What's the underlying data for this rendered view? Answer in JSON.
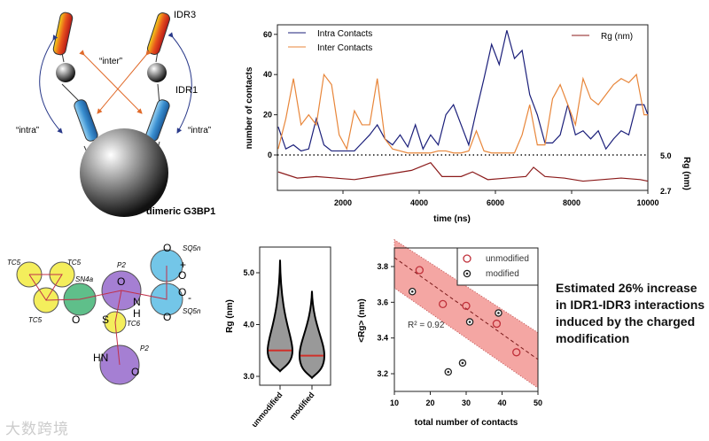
{
  "diagram": {
    "labels": {
      "idr3": "IDR3",
      "idr1": "IDR1",
      "inter": "“inter”",
      "intra_left": "“intra”",
      "intra_right": "“intra”",
      "protein": "dimeric G3BP1"
    }
  },
  "molecule": {
    "beads": [
      "TC5",
      "TC5",
      "TC5",
      "SN4a",
      "P2",
      "SQ5n",
      "SQ5n",
      "TC6",
      "P2"
    ],
    "atoms": {
      "o": "O",
      "n": "N",
      "h": "H",
      "s": "S",
      "hn": "HN",
      "plus": "+",
      "minus": "-"
    }
  },
  "note": "Estimated 26% increase in IDR1-IDR3 interactions induced by the charged modification",
  "watermark": "大数跨境",
  "colors": {
    "intra": "#1b1f7a",
    "inter": "#e8863a",
    "rg": "#8b1a1a",
    "band": "#f4a6a3",
    "unmod": "#c0303a"
  },
  "chart_data": [
    {
      "type": "line",
      "xlabel": "time (ns)",
      "ylabel": "number of contacts",
      "ylabel_right": "Rg (nm)",
      "xticks": [
        "2000",
        "4000",
        "6000",
        "8000",
        "10000"
      ],
      "yticks": [
        "0",
        "20",
        "40",
        "60"
      ],
      "yticks_right": [
        "5.0",
        "2.7"
      ],
      "xlim": [
        280,
        10000
      ],
      "ylim": [
        -20,
        65
      ],
      "ylim_right": [
        2.7,
        5.0
      ],
      "x": [
        300,
        500,
        700,
        900,
        1100,
        1300,
        1500,
        1700,
        1900,
        2100,
        2300,
        2500,
        2700,
        2900,
        3100,
        3300,
        3500,
        3700,
        3900,
        4100,
        4300,
        4500,
        4700,
        4900,
        5100,
        5300,
        5500,
        5700,
        5900,
        6100,
        6300,
        6500,
        6700,
        6900,
        7100,
        7300,
        7500,
        7700,
        7900,
        8100,
        8300,
        8500,
        8700,
        8900,
        9100,
        9300,
        9500,
        9700,
        9900,
        10000
      ],
      "series": [
        {
          "name": "Intra Contacts",
          "values": [
            14,
            3,
            5,
            2,
            3,
            18,
            5,
            2,
            2,
            2,
            2,
            6,
            10,
            15,
            8,
            5,
            10,
            4,
            15,
            3,
            10,
            5,
            20,
            25,
            15,
            5,
            22,
            38,
            55,
            45,
            62,
            48,
            52,
            30,
            20,
            6,
            6,
            10,
            25,
            10,
            12,
            8,
            12,
            3,
            8,
            12,
            10,
            25,
            25,
            20
          ]
        },
        {
          "name": "Inter Contacts",
          "values": [
            3,
            18,
            38,
            15,
            20,
            15,
            40,
            35,
            10,
            3,
            22,
            15,
            15,
            38,
            8,
            3,
            2,
            1,
            1,
            1,
            1,
            2,
            2,
            1,
            1,
            2,
            12,
            2,
            1,
            1,
            1,
            1,
            10,
            25,
            5,
            5,
            28,
            35,
            25,
            15,
            38,
            28,
            25,
            30,
            35,
            38,
            36,
            40,
            20,
            20
          ]
        }
      ],
      "rg_series": {
        "name": "Rg (nm)",
        "x": [
          300,
          800,
          1300,
          1800,
          2300,
          2800,
          3300,
          3800,
          4000,
          4300,
          4600,
          5100,
          5400,
          5800,
          6300,
          6800,
          7000,
          7300,
          7800,
          8300,
          8800,
          9300,
          9800,
          10000
        ],
        "values": [
          3.9,
          3.5,
          3.6,
          3.5,
          3.4,
          3.6,
          3.8,
          4.0,
          4.2,
          4.5,
          3.6,
          3.6,
          3.9,
          3.4,
          3.5,
          3.6,
          4.2,
          3.6,
          3.5,
          3.3,
          3.4,
          3.5,
          3.4,
          3.3
        ]
      }
    },
    {
      "type": "violin",
      "ylabel": "Rg (nm)",
      "categories": [
        "unmodified",
        "modified"
      ],
      "median": [
        3.5,
        3.4
      ],
      "min": [
        3.1,
        2.97
      ],
      "max": [
        5.25,
        4.65
      ],
      "yticks": [
        "3.0",
        "4.0",
        "5.0"
      ],
      "ylim": [
        2.9,
        5.5
      ]
    },
    {
      "type": "scatter",
      "xlabel": "total number of contacts",
      "ylabel": "<Rg> (nm)",
      "xticks": [
        "10",
        "20",
        "30",
        "40",
        "50"
      ],
      "yticks": [
        "3.2",
        "3.4",
        "3.6",
        "3.8"
      ],
      "xlim": [
        10,
        50
      ],
      "ylim": [
        3.1,
        3.9
      ],
      "annotation": "R² = 0.92",
      "legend": "top-right",
      "series": [
        {
          "name": "unmodified",
          "points": [
            [
              17,
              3.78
            ],
            [
              23.5,
              3.59
            ],
            [
              30,
              3.58
            ],
            [
              38.5,
              3.48
            ],
            [
              44,
              3.32
            ]
          ]
        },
        {
          "name": "modified",
          "points": [
            [
              15,
              3.66
            ],
            [
              31,
              3.49
            ],
            [
              39,
              3.54
            ],
            [
              25,
              3.21
            ],
            [
              29,
              3.26
            ]
          ]
        }
      ],
      "fit": {
        "x": [
          10,
          50
        ],
        "y": [
          3.85,
          3.28
        ]
      },
      "band": {
        "x": [
          10,
          50
        ],
        "upper": [
          3.95,
          3.43
        ],
        "lower": [
          3.68,
          3.12
        ]
      }
    }
  ]
}
